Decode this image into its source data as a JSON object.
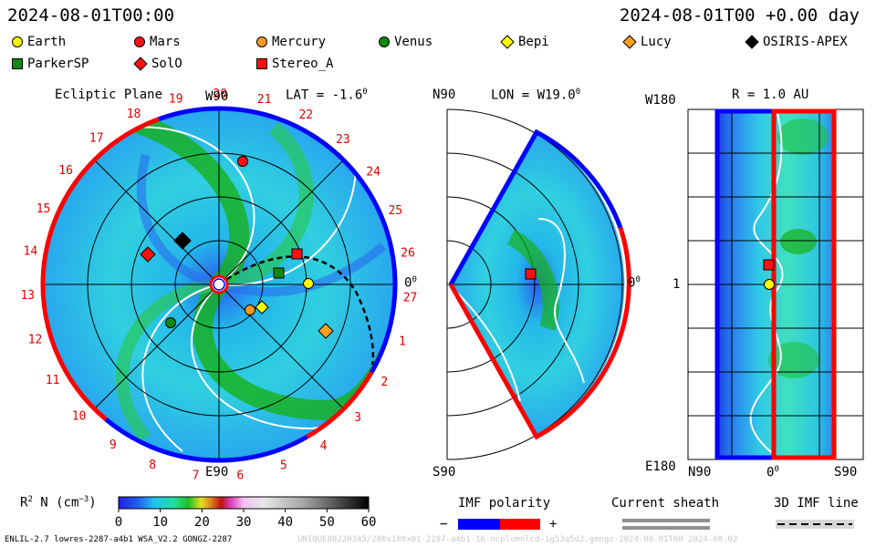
{
  "header": {
    "left_timestamp": "2024-08-01T00:00",
    "right_timestamp": "2024-08-01T00 +0.00 day"
  },
  "legend": {
    "items": [
      {
        "name": "Earth",
        "shape": "circle",
        "color": "#ffff00"
      },
      {
        "name": "Mars",
        "shape": "circle",
        "color": "#ff1010"
      },
      {
        "name": "Mercury",
        "shape": "circle",
        "color": "#ff9a20"
      },
      {
        "name": "Venus",
        "shape": "circle",
        "color": "#108a10"
      },
      {
        "name": "Bepi",
        "shape": "diamond",
        "color": "#ffff00"
      },
      {
        "name": "Lucy",
        "shape": "diamond",
        "color": "#ffa020"
      },
      {
        "name": "OSIRIS-APEX",
        "shape": "diamond",
        "color": "#000000"
      },
      {
        "name": "ParkerSP",
        "shape": "square",
        "color": "#108a10"
      },
      {
        "name": "SolO",
        "shape": "diamond",
        "color": "#ff1010"
      },
      {
        "name": "Stereo_A",
        "shape": "square",
        "color": "#ff1010"
      }
    ]
  },
  "panels": {
    "ecliptic": {
      "title": "Ecliptic Plane",
      "lat_label": "LAT = -1.6",
      "deg": "0",
      "top_label": "W90",
      "bottom_label": "E90",
      "right_label": "0",
      "carrington_ticks": [
        "19",
        "20",
        "21",
        "22",
        "23",
        "24",
        "25",
        "26",
        "27",
        "1",
        "2",
        "3",
        "4",
        "5",
        "6",
        "7",
        "8",
        "9",
        "10",
        "11",
        "12",
        "13",
        "14",
        "15",
        "16",
        "17",
        "18"
      ]
    },
    "meridional": {
      "lon_label": "LON = W19.0",
      "deg": "0",
      "top_label": "N90",
      "bottom_label": "S90",
      "right_label": "0"
    },
    "map": {
      "title": "R = 1.0 AU",
      "top_left": "W180",
      "mid_left": "1",
      "bottom_left": "E180",
      "x_labels": [
        "N90",
        "0",
        "S90"
      ],
      "deg": "0"
    }
  },
  "chart_data": {
    "type": "heatmap",
    "quantity": "R² N (cm⁻³)",
    "colorbar": {
      "label_main": "R",
      "label_sup": "2",
      "label_rest": " N (cm",
      "label_sup2": "−3",
      "label_end": ")",
      "min": 0,
      "max": 60,
      "ticks": [
        "0",
        "10",
        "20",
        "30",
        "40",
        "50",
        "60"
      ]
    },
    "ecliptic_objects": [
      {
        "name": "Mars",
        "carrington_label": "21",
        "r_au": 1.38
      },
      {
        "name": "Stereo_A",
        "r_au": 0.97
      },
      {
        "name": "ParkerSP",
        "r_au": 0.7
      },
      {
        "name": "Earth",
        "r_au": 1.0
      },
      {
        "name": "Bepi",
        "r_au": 0.5
      },
      {
        "name": "Mercury",
        "r_au": 0.4
      },
      {
        "name": "Venus",
        "r_au": 0.72
      },
      {
        "name": "SolO",
        "r_au": 0.88
      },
      {
        "name": "OSIRIS-APEX",
        "r_au": 0.75
      },
      {
        "name": "Lucy",
        "r_au": 1.3
      }
    ],
    "colors": {
      "positive_polarity": "#ff0000",
      "negative_polarity": "#0000ff",
      "background_fill": "#30c8e8"
    }
  },
  "bottom": {
    "imf_title": "IMF polarity",
    "minus": "−",
    "plus": "+",
    "sheath_title": "Current sheath",
    "imf3d_title": "3D IMF line",
    "footer_left": "ENLIL-2.7 lowres-2287-a4b1 WSA_V2.2 GONGZ-2287",
    "footer_right": "UNIQUE80220345/280x180x01-2287-a4b1-16-ncplumnlcd-1g53q5d2.gongz-2024-08-01T00   2024-08-02"
  }
}
